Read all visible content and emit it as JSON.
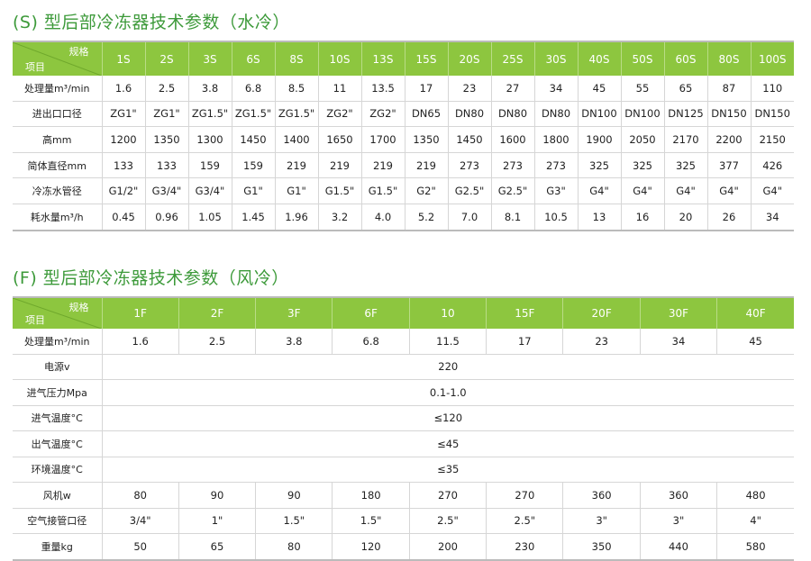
{
  "accent_color": "#8dc63f",
  "title_color": "#3d9a3a",
  "water": {
    "title": "(S) 型后部冷冻器技术参数（水冷）",
    "corner_spec": "规格",
    "corner_item": "项目",
    "models": [
      "1S",
      "2S",
      "3S",
      "6S",
      "8S",
      "10S",
      "13S",
      "15S",
      "20S",
      "25S",
      "30S",
      "40S",
      "50S",
      "60S",
      "80S",
      "100S"
    ],
    "rows": [
      {
        "label": "处理量m³/min",
        "values": [
          "1.6",
          "2.5",
          "3.8",
          "6.8",
          "8.5",
          "11",
          "13.5",
          "17",
          "23",
          "27",
          "34",
          "45",
          "55",
          "65",
          "87",
          "110"
        ]
      },
      {
        "label": "进出口口径",
        "values": [
          "ZG1\"",
          "ZG1\"",
          "ZG1.5\"",
          "ZG1.5\"",
          "ZG1.5\"",
          "ZG2\"",
          "ZG2\"",
          "DN65",
          "DN80",
          "DN80",
          "DN80",
          "DN100",
          "DN100",
          "DN125",
          "DN150",
          "DN150"
        ]
      },
      {
        "label": "高mm",
        "values": [
          "1200",
          "1350",
          "1300",
          "1450",
          "1400",
          "1650",
          "1700",
          "1350",
          "1450",
          "1600",
          "1800",
          "1900",
          "2050",
          "2170",
          "2200",
          "2150"
        ]
      },
      {
        "label": "简体直径mm",
        "values": [
          "133",
          "133",
          "159",
          "159",
          "219",
          "219",
          "219",
          "219",
          "273",
          "273",
          "273",
          "325",
          "325",
          "325",
          "377",
          "426"
        ]
      },
      {
        "label": "冷冻水管径",
        "values": [
          "G1/2\"",
          "G3/4\"",
          "G3/4\"",
          "G1\"",
          "G1\"",
          "G1.5\"",
          "G1.5\"",
          "G2\"",
          "G2.5\"",
          "G2.5\"",
          "G3\"",
          "G4\"",
          "G4\"",
          "G4\"",
          "G4\"",
          "G4\""
        ]
      },
      {
        "label": "耗水量m³/h",
        "values": [
          "0.45",
          "0.96",
          "1.05",
          "1.45",
          "1.96",
          "3.2",
          "4.0",
          "5.2",
          "7.0",
          "8.1",
          "10.5",
          "13",
          "16",
          "20",
          "26",
          "34"
        ]
      }
    ]
  },
  "air": {
    "title": "(F) 型后部冷冻器技术参数（风冷）",
    "corner_spec": "规格",
    "corner_item": "项目",
    "models": [
      "1F",
      "2F",
      "3F",
      "6F",
      "10",
      "15F",
      "20F",
      "30F",
      "40F"
    ],
    "rows": [
      {
        "label": "处理量m³/min",
        "values": [
          "1.6",
          "2.5",
          "3.8",
          "6.8",
          "11.5",
          "17",
          "23",
          "34",
          "45"
        ]
      },
      {
        "label": "电源v",
        "span": "220"
      },
      {
        "label": "进气压力Mpa",
        "span": "0.1-1.0"
      },
      {
        "label": "进气温度°C",
        "span": "≤120"
      },
      {
        "label": "出气温度°C",
        "span": "≤45"
      },
      {
        "label": "环境温度°C",
        "span": "≤35"
      },
      {
        "label": "风机w",
        "values": [
          "80",
          "90",
          "90",
          "180",
          "270",
          "270",
          "360",
          "360",
          "480"
        ]
      },
      {
        "label": "空气接管口径",
        "values": [
          "3/4\"",
          "1\"",
          "1.5\"",
          "1.5\"",
          "2.5\"",
          "2.5\"",
          "3\"",
          "3\"",
          "4\""
        ]
      },
      {
        "label": "重量kg",
        "values": [
          "50",
          "65",
          "80",
          "120",
          "200",
          "230",
          "350",
          "440",
          "580"
        ]
      }
    ]
  }
}
